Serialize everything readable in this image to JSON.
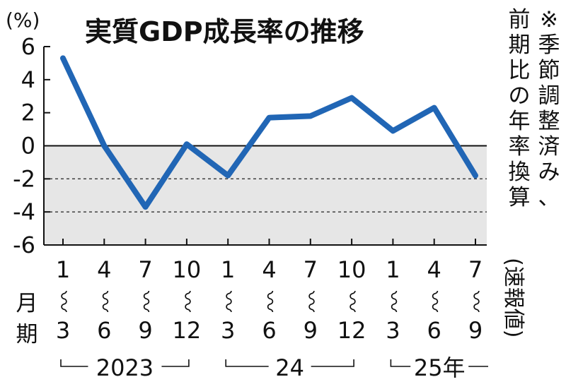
{
  "chart_data": {
    "type": "line",
    "title": "実質GDP成長率の推移",
    "ylabel": "(%)",
    "note": "※季節調整済み、前期比の年率換算",
    "month_axis_label": "月期",
    "ylim": [
      -6,
      6
    ],
    "yticks": [
      "6",
      "4",
      "2",
      "0",
      "-2",
      "-4",
      "-6"
    ],
    "shaded_negative_region": true,
    "line_color": "#2166b5",
    "shade_color": "#e6e6e6",
    "categories": [
      {
        "start": "1",
        "end": "3"
      },
      {
        "start": "4",
        "end": "6"
      },
      {
        "start": "7",
        "end": "9"
      },
      {
        "start": "10",
        "end": "12"
      },
      {
        "start": "1",
        "end": "3"
      },
      {
        "start": "4",
        "end": "6"
      },
      {
        "start": "7",
        "end": "9"
      },
      {
        "start": "10",
        "end": "12"
      },
      {
        "start": "1",
        "end": "3"
      },
      {
        "start": "4",
        "end": "6"
      },
      {
        "start": "7",
        "end": "9"
      }
    ],
    "tilde": "〰",
    "preliminary_label": "(速報値)",
    "year_groups": [
      {
        "label": "2023",
        "first": 0,
        "last": 3
      },
      {
        "label": "24",
        "first": 4,
        "last": 7
      },
      {
        "label": "25年",
        "first": 8,
        "last": 10
      }
    ],
    "series": [
      {
        "values": [
          5.3,
          0.0,
          -3.7,
          0.1,
          -1.8,
          1.7,
          1.8,
          2.9,
          0.9,
          2.3,
          -1.8
        ]
      }
    ]
  }
}
